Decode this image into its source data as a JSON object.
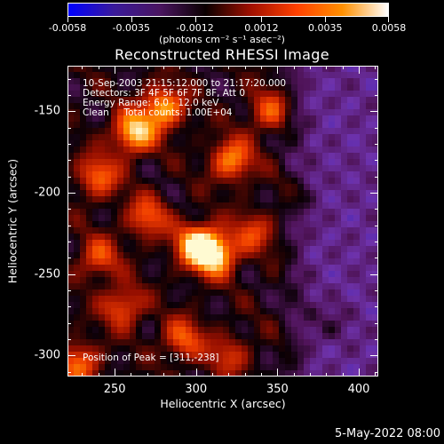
{
  "colorbar": {
    "tick_labels": [
      "-0.0058",
      "-0.0035",
      "-0.0012",
      "0.0012",
      "0.0035",
      "0.0058"
    ],
    "tick_values": [
      -0.0058,
      -0.0035,
      -0.0012,
      0.0012,
      0.0035,
      0.0058
    ],
    "units": "(photons cm⁻² s⁻¹ asec⁻²)",
    "colors": [
      "#0000ff",
      "#3a1a9a",
      "#4a1560",
      "#0a0000",
      "#a01000",
      "#ff4000",
      "#ff9000",
      "#ffffff"
    ]
  },
  "title": "Reconstructed RHESSI Image",
  "annotations": {
    "line1": "10-Sep-2003 21:15:12.000 to 21:17:20.000",
    "line2": "Detectors: 3F 4F 5F 6F 7F 8F, Att 0",
    "line3": "Energy Range: 6.0 - 12.0 keV",
    "line4": "Clean     Total counts: 1.00E+04",
    "peak": "Position of Peak = [311,-238]"
  },
  "axes": {
    "xlabel": "Heliocentric X (arcsec)",
    "ylabel": "Heliocentric Y (arcsec)",
    "x_ticks": [
      "250",
      "300",
      "350",
      "400"
    ],
    "y_ticks": [
      "-150",
      "-200",
      "-250",
      "-300"
    ]
  },
  "date_stamp": "5-May-2022 08:00",
  "chart_data": {
    "type": "heatmap",
    "title": "Reconstructed RHESSI Image",
    "xlabel": "Heliocentric X (arcsec)",
    "ylabel": "Heliocentric Y (arcsec)",
    "xlim": [
      221,
      412
    ],
    "ylim": [
      -313,
      -122
    ],
    "x_ticks": [
      250,
      300,
      350,
      400
    ],
    "y_ticks": [
      -150,
      -200,
      -250,
      -300
    ],
    "colorbar_range": [
      -0.0058,
      0.0058
    ],
    "peak_position": [
      311,
      -238
    ],
    "bright_sources": [
      {
        "x": 311,
        "y": -238,
        "level": 1.0
      },
      {
        "x": 300,
        "y": -232,
        "level": 0.85
      },
      {
        "x": 262,
        "y": -163,
        "level": 0.9
      },
      {
        "x": 280,
        "y": -148,
        "level": 0.8
      },
      {
        "x": 322,
        "y": -180,
        "level": 0.7
      },
      {
        "x": 382,
        "y": -280,
        "level": 0.8
      },
      {
        "x": 240,
        "y": -190,
        "level": 0.6
      },
      {
        "x": 292,
        "y": -290,
        "level": 0.55
      },
      {
        "x": 255,
        "y": -270,
        "level": 0.55
      },
      {
        "x": 228,
        "y": -305,
        "level": 0.6
      },
      {
        "x": 345,
        "y": -150,
        "level": 0.5
      },
      {
        "x": 335,
        "y": -225,
        "level": 0.45
      },
      {
        "x": 270,
        "y": -215,
        "level": 0.55
      },
      {
        "x": 240,
        "y": -240,
        "level": 0.5
      },
      {
        "x": 320,
        "y": -300,
        "level": 0.4
      },
      {
        "x": 370,
        "y": -200,
        "level": 0.3
      }
    ],
    "negative_region": {
      "x_min": 350,
      "x_max": 412,
      "y_min": -313,
      "y_max": -122
    }
  }
}
